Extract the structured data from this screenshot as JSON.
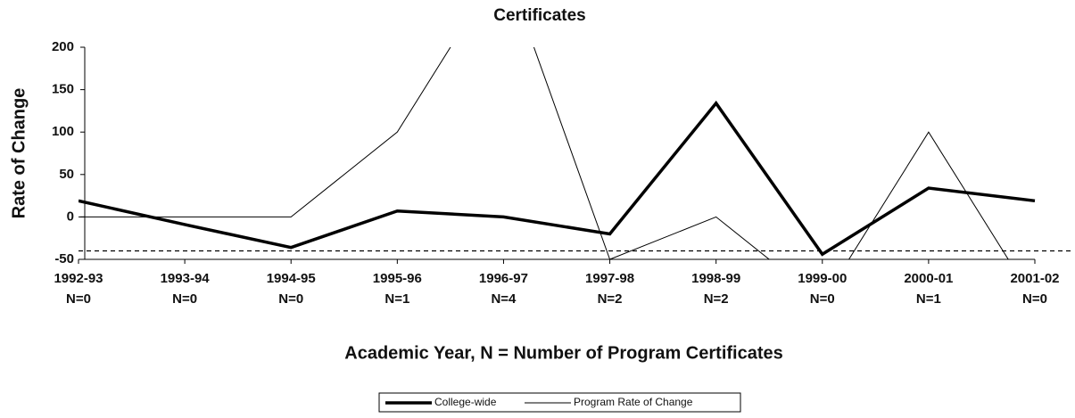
{
  "chart_data": {
    "type": "line",
    "title": "Certificates",
    "y_label": "Rate of Change",
    "x_label": "Academic Year, N = Number of Program Certificates",
    "categories": [
      "1992-93",
      "1993-94",
      "1994-95",
      "1995-96",
      "1996-97",
      "1997-98",
      "1998-99",
      "1999-00",
      "2000-01",
      "2001-02"
    ],
    "category_counts": [
      "N=0",
      "N=0",
      "N=0",
      "N=1",
      "N=4",
      "N=2",
      "N=2",
      "N=0",
      "N=1",
      "N=0"
    ],
    "series": [
      {
        "name": "College-wide",
        "color": "#000000",
        "values": [
          19,
          -9,
          -36,
          7,
          0,
          -20,
          134,
          -44,
          34,
          19
        ]
      },
      {
        "name": "Program Rate of Change",
        "color": "#000000",
        "values": [
          0,
          0,
          0,
          100,
          300,
          -50,
          0,
          -100,
          100,
          -100
        ]
      }
    ],
    "reference_value": -40,
    "ylim": [
      -50,
      200
    ],
    "yticks": [
      -50,
      0,
      50,
      100,
      150,
      200
    ],
    "grid": false,
    "legend": "bottom"
  }
}
